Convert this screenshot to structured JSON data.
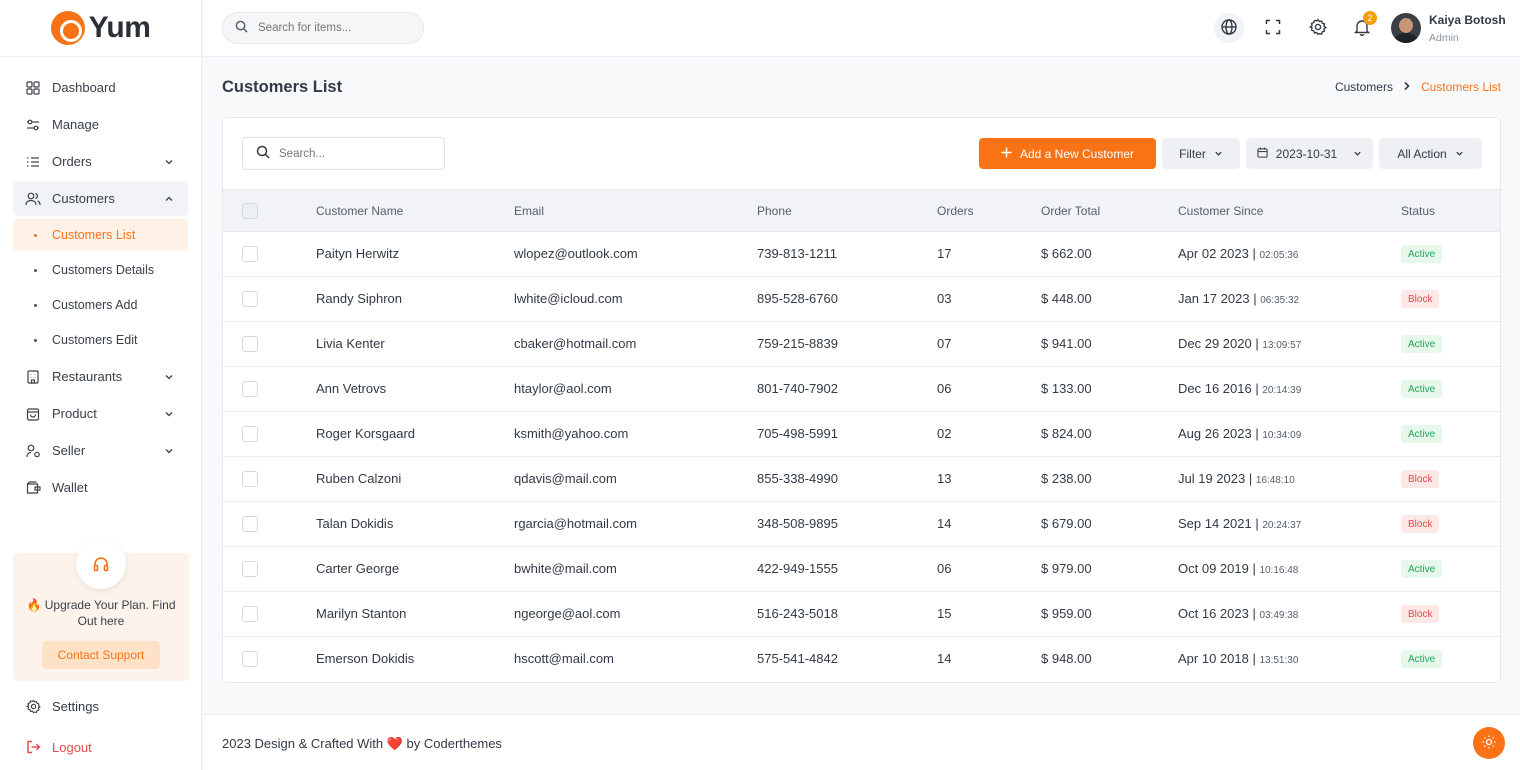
{
  "brand": {
    "name": "Yum",
    "accent": "#f97316"
  },
  "top_search": {
    "placeholder": "Search for items..."
  },
  "user": {
    "name": "Kaiya Botosh",
    "role": "Admin",
    "notifications": "2"
  },
  "sidebar": {
    "items": [
      {
        "label": "Dashboard",
        "icon": "grid-icon"
      },
      {
        "label": "Manage",
        "icon": "sliders-icon"
      },
      {
        "label": "Orders",
        "icon": "list-icon"
      },
      {
        "label": "Customers",
        "icon": "users-icon"
      }
    ],
    "customers_sub": [
      {
        "label": "Customers List"
      },
      {
        "label": "Customers Details"
      },
      {
        "label": "Customers Add"
      },
      {
        "label": "Customers Edit"
      }
    ],
    "items2": [
      {
        "label": "Restaurants",
        "icon": "building-icon"
      },
      {
        "label": "Product",
        "icon": "bag-icon"
      },
      {
        "label": "Seller",
        "icon": "seller-icon"
      },
      {
        "label": "Wallet",
        "icon": "wallet-icon"
      }
    ],
    "upgrade_text": "🔥 Upgrade Your Plan. Find Out here",
    "contact_label": "Contact Support",
    "settings_label": "Settings",
    "logout_label": "Logout"
  },
  "page": {
    "title": "Customers List",
    "breadcrumb": [
      "Customers",
      "Customers List"
    ]
  },
  "toolbar": {
    "search_placeholder": "Search...",
    "add_label": "Add a New Customer",
    "filter_label": "Filter",
    "date_value": "2023-10-31",
    "action_label": "All Action"
  },
  "table": {
    "headers": [
      "Customer Name",
      "Email",
      "Phone",
      "Orders",
      "Order Total",
      "Customer Since",
      "Status"
    ],
    "rows": [
      {
        "name": "Paityn Herwitz",
        "email": "wlopez@outlook.com",
        "phone": "739-813-1211",
        "orders": "17",
        "total": "$ 662.00",
        "date": "Apr 02 2023",
        "time": "02:05:36",
        "status": "Active"
      },
      {
        "name": "Randy Siphron",
        "email": "lwhite@icloud.com",
        "phone": "895-528-6760",
        "orders": "03",
        "total": "$ 448.00",
        "date": "Jan 17 2023",
        "time": "06:35:32",
        "status": "Block"
      },
      {
        "name": "Livia Kenter",
        "email": "cbaker@hotmail.com",
        "phone": "759-215-8839",
        "orders": "07",
        "total": "$ 941.00",
        "date": "Dec 29 2020",
        "time": "13:09:57",
        "status": "Active"
      },
      {
        "name": "Ann Vetrovs",
        "email": "htaylor@aol.com",
        "phone": "801-740-7902",
        "orders": "06",
        "total": "$ 133.00",
        "date": "Dec 16 2016",
        "time": "20:14:39",
        "status": "Active"
      },
      {
        "name": "Roger Korsgaard",
        "email": "ksmith@yahoo.com",
        "phone": "705-498-5991",
        "orders": "02",
        "total": "$ 824.00",
        "date": "Aug 26 2023",
        "time": "10:34:09",
        "status": "Active"
      },
      {
        "name": "Ruben Calzoni",
        "email": "qdavis@mail.com",
        "phone": "855-338-4990",
        "orders": "13",
        "total": "$ 238.00",
        "date": "Jul 19 2023",
        "time": "16:48:10",
        "status": "Block"
      },
      {
        "name": "Talan Dokidis",
        "email": "rgarcia@hotmail.com",
        "phone": "348-508-9895",
        "orders": "14",
        "total": "$ 679.00",
        "date": "Sep 14 2021",
        "time": "20:24:37",
        "status": "Block"
      },
      {
        "name": "Carter George",
        "email": "bwhite@mail.com",
        "phone": "422-949-1555",
        "orders": "06",
        "total": "$ 979.00",
        "date": "Oct 09 2019",
        "time": "10:16:48",
        "status": "Active"
      },
      {
        "name": "Marilyn Stanton",
        "email": "ngeorge@aol.com",
        "phone": "516-243-5018",
        "orders": "15",
        "total": "$ 959.00",
        "date": "Oct 16 2023",
        "time": "03:49:38",
        "status": "Block"
      },
      {
        "name": "Emerson Dokidis",
        "email": "hscott@mail.com",
        "phone": "575-541-4842",
        "orders": "14",
        "total": "$ 948.00",
        "date": "Apr 10 2018",
        "time": "13:51:30",
        "status": "Active"
      }
    ]
  },
  "footer": {
    "text": "2023 Design & Crafted With ❤️ by Coderthemes"
  }
}
